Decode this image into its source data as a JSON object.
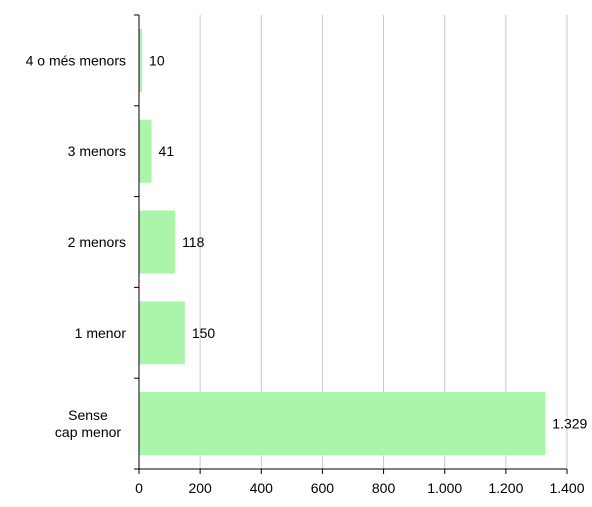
{
  "chart_data": {
    "type": "bar",
    "orientation": "horizontal",
    "categories": [
      [
        "4 o més menors"
      ],
      [
        "3 menors"
      ],
      [
        "2 menors"
      ],
      [
        "1 menor"
      ],
      [
        "Sense",
        "cap menor"
      ]
    ],
    "values": [
      10,
      41,
      118,
      150,
      1329
    ],
    "value_labels": [
      "10",
      "41",
      "118",
      "150",
      "1.329"
    ],
    "x_ticks": [
      "0",
      "200",
      "400",
      "600",
      "800",
      "1.000",
      "1.200",
      "1.400"
    ],
    "xlim": [
      0,
      1400
    ],
    "grid": true,
    "legend": false,
    "colors": {
      "bar": "#aaf5aa",
      "grid": "#c8c8c8",
      "axis": "#000000"
    }
  }
}
